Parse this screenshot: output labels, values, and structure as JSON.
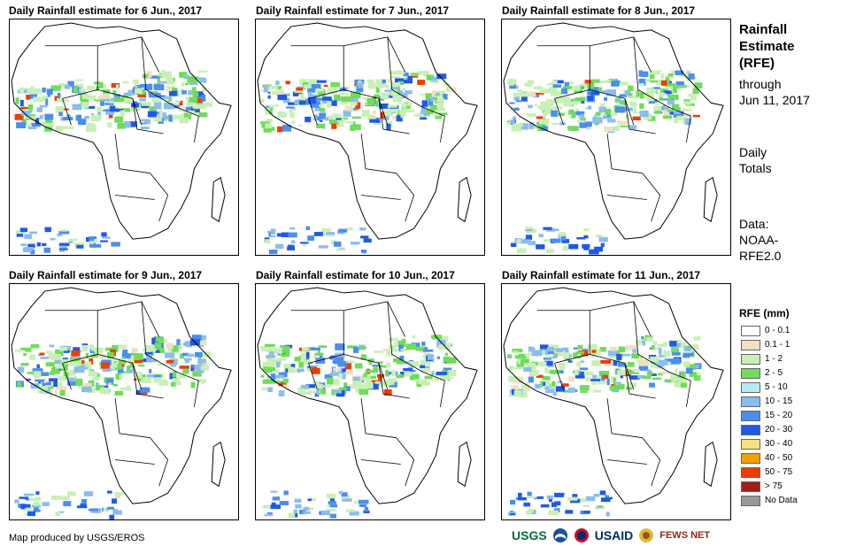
{
  "panels": [
    {
      "title": "Daily Rainfall estimate for 6 Jun., 2017"
    },
    {
      "title": "Daily Rainfall estimate for 7 Jun., 2017"
    },
    {
      "title": "Daily Rainfall estimate for 8 Jun., 2017"
    },
    {
      "title": "Daily Rainfall estimate for 9 Jun., 2017"
    },
    {
      "title": "Daily Rainfall estimate for 10 Jun., 2017"
    },
    {
      "title": "Daily Rainfall estimate for 11 Jun., 2017"
    }
  ],
  "side": {
    "title_line1": "Rainfall",
    "title_line2": "Estimate",
    "title_line3": "(RFE)",
    "through_line1": "through",
    "through_line2": "Jun 11, 2017",
    "daily_line1": "Daily",
    "daily_line2": "Totals",
    "data_line1": "Data:",
    "data_line2": "NOAA-",
    "data_line3": "RFE2.0"
  },
  "legend": {
    "title": "RFE (mm)",
    "items": [
      {
        "label": "0 - 0.1",
        "color": "#ffffff"
      },
      {
        "label": "0.1 - 1",
        "color": "#f0dfc3"
      },
      {
        "label": "1 - 2",
        "color": "#c8f0b4"
      },
      {
        "label": "2 - 5",
        "color": "#6fdc5a"
      },
      {
        "label": "5 - 10",
        "color": "#b4ecf0"
      },
      {
        "label": "10 - 15",
        "color": "#8cbcf0"
      },
      {
        "label": "15 - 20",
        "color": "#4a8ef0"
      },
      {
        "label": "20 - 30",
        "color": "#1f5ae6"
      },
      {
        "label": "30 - 40",
        "color": "#f7e080"
      },
      {
        "label": "40 - 50",
        "color": "#f0a000"
      },
      {
        "label": "50 - 75",
        "color": "#f03c00"
      },
      {
        "label": "> 75",
        "color": "#a01e14"
      },
      {
        "label": "No Data",
        "color": "#999999"
      }
    ]
  },
  "credit": "Map produced by USGS/EROS",
  "logos": {
    "usgs": "USGS",
    "usaid": "USAID",
    "fewsnet": "FEWS NET"
  }
}
